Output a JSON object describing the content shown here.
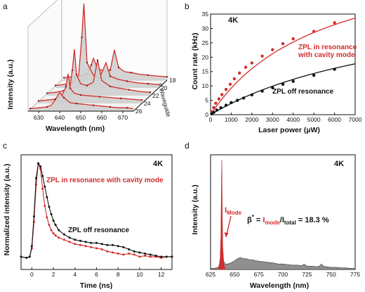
{
  "panel_labels": [
    "a",
    "b",
    "c",
    "d"
  ],
  "chart_data": [
    {
      "panel": "a",
      "type": "line",
      "xlabel": "Wavelength (nm)",
      "ylabel": "Intensity (a.u.)",
      "zlabel": "# Waveguide",
      "x_ticks": [
        "630",
        "640",
        "650",
        "660",
        "670"
      ],
      "z_ticks": [
        "18",
        "20",
        "22",
        "24",
        "26"
      ],
      "xlim": [
        625,
        675
      ],
      "traces": [
        {
          "waveguide": 26,
          "x": [
            626,
            630,
            634,
            636,
            638,
            640,
            642,
            645,
            648,
            652,
            656,
            660,
            664,
            668,
            672,
            675
          ],
          "y": [
            0.03,
            0.04,
            0.05,
            0.07,
            0.14,
            0.22,
            0.16,
            0.1,
            0.09,
            0.08,
            0.07,
            0.06,
            0.05,
            0.04,
            0.04,
            0.03
          ]
        },
        {
          "waveguide": 24,
          "x": [
            626,
            630,
            634,
            637,
            639,
            640,
            641,
            643,
            646,
            650,
            655,
            660,
            665,
            670,
            675
          ],
          "y": [
            0.03,
            0.04,
            0.05,
            0.09,
            0.2,
            0.35,
            0.18,
            0.12,
            0.1,
            0.09,
            0.08,
            0.07,
            0.06,
            0.05,
            0.04
          ]
        },
        {
          "waveguide": 22,
          "x": [
            626,
            630,
            634,
            637,
            638,
            639,
            640,
            642,
            645,
            648,
            650,
            652,
            656,
            660,
            665,
            670,
            675
          ],
          "y": [
            0.03,
            0.04,
            0.06,
            0.12,
            0.3,
            0.55,
            0.25,
            0.14,
            0.12,
            0.16,
            0.42,
            0.18,
            0.11,
            0.09,
            0.07,
            0.05,
            0.04
          ]
        },
        {
          "waveguide": 20,
          "x": [
            626,
            630,
            634,
            637,
            638.5,
            639.5,
            641,
            644,
            647,
            650,
            652,
            656,
            660,
            665,
            670,
            675
          ],
          "y": [
            0.03,
            0.04,
            0.06,
            0.15,
            0.6,
            1.0,
            0.3,
            0.15,
            0.12,
            0.3,
            0.14,
            0.1,
            0.08,
            0.06,
            0.05,
            0.04
          ]
        },
        {
          "waveguide": 18,
          "x": [
            626,
            630,
            634,
            637,
            639,
            640,
            642,
            645,
            648,
            650,
            652,
            655,
            658,
            662,
            666,
            670,
            675
          ],
          "y": [
            0.03,
            0.04,
            0.05,
            0.08,
            0.18,
            0.26,
            0.14,
            0.11,
            0.12,
            0.36,
            0.15,
            0.1,
            0.09,
            0.07,
            0.06,
            0.05,
            0.04
          ]
        }
      ]
    },
    {
      "panel": "b",
      "type": "scatter",
      "xlabel": "Laser power (µW)",
      "ylabel": "Count rate (kHz)",
      "tag": "4K",
      "xlim": [
        0,
        7000
      ],
      "ylim": [
        0,
        35
      ],
      "x_ticks": [
        "0",
        "1000",
        "2000",
        "3000",
        "4000",
        "5000",
        "6000",
        "7000"
      ],
      "y_ticks": [
        "0",
        "5",
        "10",
        "15",
        "20",
        "25",
        "30",
        "35"
      ],
      "series": [
        {
          "name": "ZPL in resonance with cavity mode",
          "name_lines": [
            "ZPL in resonance",
            "with cavity mode"
          ],
          "color": "#d42c2c",
          "x": [
            60,
            150,
            250,
            400,
            550,
            750,
            950,
            1150,
            1400,
            1700,
            2000,
            2500,
            3000,
            3500,
            4000,
            5000,
            6000
          ],
          "y": [
            1.0,
            2.5,
            4.0,
            5.5,
            7.0,
            8.8,
            10.6,
            12.5,
            14.5,
            16.5,
            18.0,
            20.4,
            22.6,
            24.7,
            26.4,
            29.0,
            32.0
          ],
          "fit": {
            "type": "saturation",
            "Isat": 60,
            "Psat": 5500
          }
        },
        {
          "name": "ZPL off resonance",
          "color": "#111111",
          "x": [
            60,
            150,
            300,
            500,
            750,
            1000,
            1300,
            1600,
            2000,
            2500,
            3000,
            3500,
            4000,
            5000,
            6000
          ],
          "y": [
            0.3,
            0.8,
            1.6,
            2.4,
            3.3,
            4.2,
            5.0,
            5.8,
            6.9,
            8.2,
            9.4,
            10.6,
            11.6,
            13.7,
            15.8
          ],
          "fit": {
            "type": "saturation",
            "Isat": 43,
            "Psat": 10000
          }
        }
      ]
    },
    {
      "panel": "c",
      "type": "line",
      "xlabel": "Time (ns)",
      "ylabel": "Normalized intensity (a.u.)",
      "tag": "4K",
      "xlim": [
        -1,
        13
      ],
      "ylim": [
        0,
        1.08
      ],
      "x_ticks": [
        "0",
        "2",
        "4",
        "6",
        "8",
        "10",
        "12"
      ],
      "series": [
        {
          "name": "ZPL in resonance with cavity mode",
          "color": "#d42c2c",
          "x": [
            -1,
            -0.5,
            -0.2,
            0,
            0.2,
            0.4,
            0.6,
            0.8,
            1.0,
            1.2,
            1.4,
            1.6,
            1.8,
            2.0,
            2.2,
            2.5,
            3.0,
            3.5,
            4.0,
            4.5,
            5.0,
            5.5,
            6.0,
            6.5,
            7.0,
            7.5,
            8.0,
            8.5,
            9.0,
            9.5,
            10,
            10.5,
            11,
            11.5,
            12,
            12.5,
            13
          ],
          "y": [
            0.12,
            0.11,
            0.12,
            0.2,
            0.45,
            0.8,
            1.0,
            0.95,
            0.76,
            0.6,
            0.49,
            0.42,
            0.37,
            0.34,
            0.32,
            0.3,
            0.28,
            0.26,
            0.24,
            0.23,
            0.22,
            0.21,
            0.2,
            0.19,
            0.17,
            0.16,
            0.15,
            0.14,
            0.15,
            0.14,
            0.12,
            0.13,
            0.12,
            0.12,
            0.11,
            0.12,
            0.12
          ]
        },
        {
          "name": "ZPL off resonance",
          "color": "#111111",
          "x": [
            -1,
            -0.5,
            -0.2,
            0,
            0.2,
            0.4,
            0.6,
            0.8,
            1.0,
            1.2,
            1.4,
            1.6,
            1.8,
            2.0,
            2.2,
            2.5,
            3.0,
            3.5,
            4.0,
            4.5,
            5.0,
            5.5,
            6.0,
            6.5,
            7.0,
            7.5,
            8.0,
            8.5,
            9.0,
            9.5,
            10,
            10.5,
            11,
            11.5,
            12,
            12.5,
            13
          ],
          "y": [
            0.12,
            0.11,
            0.12,
            0.22,
            0.5,
            0.86,
            1.0,
            0.97,
            0.88,
            0.78,
            0.68,
            0.59,
            0.52,
            0.46,
            0.42,
            0.37,
            0.33,
            0.3,
            0.28,
            0.27,
            0.26,
            0.25,
            0.25,
            0.24,
            0.23,
            0.23,
            0.22,
            0.21,
            0.19,
            0.17,
            0.16,
            0.15,
            0.14,
            0.13,
            0.12,
            0.12,
            0.12
          ]
        }
      ],
      "annotations": [
        "ZPL in resonance with cavity mode",
        "ZPL off resonance"
      ]
    },
    {
      "panel": "d",
      "type": "area",
      "xlabel": "Wavelength (nm)",
      "ylabel": "Intensity (a.u.)",
      "tag": "4K",
      "xlim": [
        625,
        775
      ],
      "ylim": [
        0,
        1.05
      ],
      "x_ticks": [
        "625",
        "650",
        "675",
        "700",
        "725",
        "750",
        "775"
      ],
      "peak_label": "I",
      "peak_label_sub": "Mode",
      "formula": {
        "prefix": "β",
        "sup": "*",
        "eq": " = ",
        "num_main": "I",
        "num_sub": "mode",
        "slash": "/",
        "den_main": "I",
        "den_sub": "total",
        "result": " = 18.3 %"
      },
      "mode_peak": {
        "x": 636.5,
        "y": 1.0
      },
      "x": [
        625,
        628,
        631,
        633,
        634,
        635,
        635.8,
        636.3,
        636.6,
        637.0,
        637.6,
        638.5,
        640,
        643,
        646,
        650,
        653,
        656,
        659,
        662,
        665,
        668,
        672,
        676,
        680,
        685,
        690,
        695,
        700,
        705,
        710,
        715,
        720,
        722,
        724,
        726,
        730,
        735,
        738,
        740,
        742,
        745,
        750,
        755,
        760,
        765,
        770,
        775
      ],
      "y": [
        0.01,
        0.01,
        0.015,
        0.02,
        0.04,
        0.1,
        0.3,
        0.75,
        1.0,
        0.55,
        0.2,
        0.08,
        0.05,
        0.05,
        0.06,
        0.08,
        0.1,
        0.11,
        0.1,
        0.1,
        0.09,
        0.09,
        0.08,
        0.075,
        0.07,
        0.065,
        0.06,
        0.05,
        0.05,
        0.045,
        0.04,
        0.04,
        0.035,
        0.05,
        0.035,
        0.03,
        0.03,
        0.025,
        0.03,
        0.05,
        0.03,
        0.025,
        0.02,
        0.02,
        0.015,
        0.015,
        0.01,
        0.01
      ]
    }
  ]
}
